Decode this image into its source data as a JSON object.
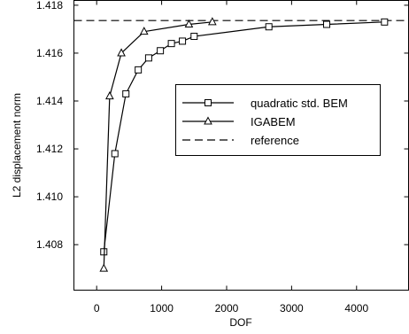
{
  "chart_data": {
    "type": "line",
    "title": "",
    "xlabel": "DOF",
    "ylabel": "L2 displacement norm",
    "xlim": [
      -350,
      4800
    ],
    "ylim": [
      1.4061,
      1.4182
    ],
    "xticks": [
      0,
      1000,
      2000,
      3000,
      4000
    ],
    "xtick_labels": [
      "0",
      "1000",
      "2000",
      "3000",
      "4000"
    ],
    "yticks": [
      1.408,
      1.41,
      1.412,
      1.414,
      1.416,
      1.418
    ],
    "ytick_labels": [
      "1.408",
      "1.410",
      "1.412",
      "1.414",
      "1.416",
      "1.418"
    ],
    "grid": false,
    "legend_position": "center-right",
    "series": [
      {
        "name": "quadratic std. BEM",
        "marker": "square",
        "line_style": "solid",
        "x": [
          110,
          280,
          450,
          640,
          800,
          980,
          1150,
          1320,
          1500,
          2650,
          3540,
          4430
        ],
        "y": [
          1.4077,
          1.4118,
          1.4143,
          1.4153,
          1.4158,
          1.4161,
          1.4164,
          1.4165,
          1.4167,
          1.4171,
          1.4172,
          1.4173
        ]
      },
      {
        "name": "IGABEM",
        "marker": "triangle",
        "line_style": "solid",
        "x": [
          110,
          200,
          380,
          730,
          1420,
          1780
        ],
        "y": [
          1.407,
          1.4142,
          1.416,
          1.4169,
          1.4172,
          1.4173
        ]
      },
      {
        "name": "reference",
        "marker": "none",
        "line_style": "dashed",
        "y": 1.41736
      }
    ]
  }
}
